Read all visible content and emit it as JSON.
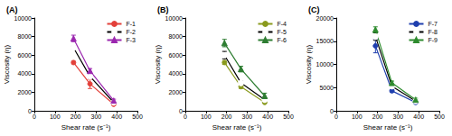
{
  "chart_data": [
    {
      "type": "line",
      "title": "(A)",
      "x_label": "Shear rate (s⁻¹)",
      "y_label": "Viscosity (η)",
      "x": [
        190,
        270,
        385
      ],
      "xlim": [
        0,
        500
      ],
      "xticks": [
        0,
        100,
        200,
        300,
        400,
        500
      ],
      "ylim": [
        0,
        10000
      ],
      "yticks": [
        0,
        2000,
        4000,
        6000,
        8000,
        10000
      ],
      "grid": false,
      "legend": "upper right",
      "series": [
        {
          "name": "F-1",
          "color": "#e3403a",
          "marker": "circle",
          "values": [
            5200,
            2900,
            700
          ],
          "errors": [
            150,
            500,
            100
          ]
        },
        {
          "name": "F-2",
          "color": "#000000",
          "marker": "emptyCircle",
          "values": [
            6800,
            3700,
            900
          ],
          "errors": [
            150,
            200,
            100
          ]
        },
        {
          "name": "F-3",
          "color": "#9b27af",
          "marker": "triangle",
          "values": [
            7800,
            4300,
            1100
          ],
          "errors": [
            350,
            250,
            150
          ]
        }
      ]
    },
    {
      "type": "line",
      "title": "(B)",
      "x_label": "Shear rate (s⁻¹)",
      "y_label": "Viscosity (η)",
      "x": [
        190,
        270,
        385
      ],
      "xlim": [
        0,
        500
      ],
      "xticks": [
        0,
        100,
        200,
        300,
        400,
        500
      ],
      "ylim": [
        0,
        10000
      ],
      "yticks": [
        0,
        2000,
        4000,
        6000,
        8000,
        10000
      ],
      "grid": false,
      "legend": "upper right",
      "series": [
        {
          "name": "F-4",
          "color": "#8a9a1e",
          "marker": "circle",
          "values": [
            5200,
            2600,
            900
          ],
          "errors": [
            200,
            200,
            100
          ]
        },
        {
          "name": "F-5",
          "color": "#000000",
          "marker": "emptyCircle",
          "values": [
            6000,
            3000,
            1200
          ],
          "errors": [
            400,
            200,
            100
          ]
        },
        {
          "name": "F-6",
          "color": "#2e7d32",
          "marker": "triangle",
          "values": [
            7300,
            4500,
            1600
          ],
          "errors": [
            400,
            300,
            300
          ]
        }
      ]
    },
    {
      "type": "line",
      "title": "(C)",
      "x_label": "Shear rate (s⁻¹)",
      "y_label": "Viscosity (η)",
      "x": [
        190,
        270,
        385
      ],
      "xlim": [
        0,
        500
      ],
      "xticks": [
        0,
        100,
        200,
        300,
        400,
        500
      ],
      "ylim": [
        0,
        20000
      ],
      "yticks": [
        0,
        5000,
        10000,
        15000,
        20000
      ],
      "grid": false,
      "legend": "upper right",
      "series": [
        {
          "name": "F-7",
          "color": "#1f3fae",
          "marker": "circle",
          "values": [
            14000,
            4300,
            1800
          ],
          "errors": [
            1500,
            300,
            200
          ]
        },
        {
          "name": "F-8",
          "color": "#000000",
          "marker": "emptyCircle",
          "values": [
            16000,
            5300,
            2100
          ],
          "errors": [
            800,
            300,
            200
          ]
        },
        {
          "name": "F-9",
          "color": "#2e8b2e",
          "marker": "triangle",
          "values": [
            17500,
            6000,
            2400
          ],
          "errors": [
            600,
            400,
            300
          ]
        }
      ]
    }
  ]
}
